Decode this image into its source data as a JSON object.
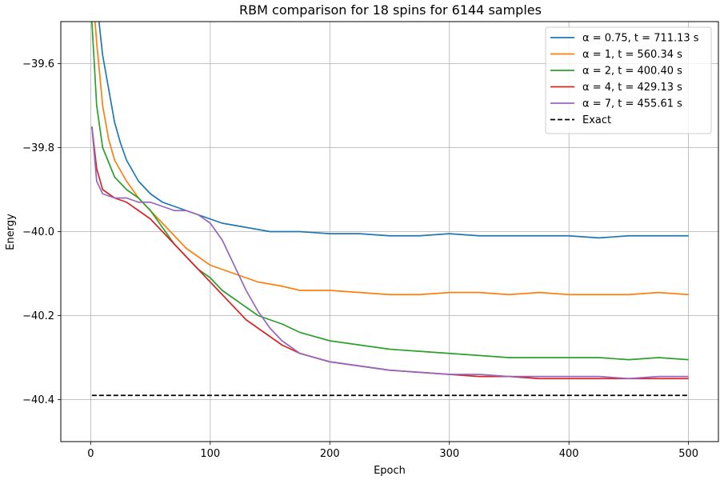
{
  "chart_data": {
    "type": "line",
    "title": "RBM comparison for 18 spins for 6144 samples",
    "xlabel": "Epoch",
    "ylabel": "Energy",
    "xlim": [
      -25,
      525
    ],
    "ylim": [
      -40.5,
      -39.5
    ],
    "xticks": [
      0,
      100,
      200,
      300,
      400,
      500
    ],
    "xtick_labels": [
      "0",
      "100",
      "200",
      "300",
      "400",
      "500"
    ],
    "yticks": [
      -40.4,
      -40.2,
      -40.0,
      -39.8,
      -39.6
    ],
    "ytick_labels": [
      "−40.4",
      "−40.2",
      "−40.0",
      "−39.8",
      "−39.6"
    ],
    "grid": true,
    "legend_position": "top-right",
    "series": [
      {
        "name": "α = 0.75, t = 711.13 s",
        "color": "#1f77b4",
        "style": "solid",
        "x": [
          1,
          5,
          10,
          15,
          20,
          25,
          30,
          40,
          50,
          60,
          70,
          80,
          90,
          100,
          110,
          120,
          130,
          140,
          150,
          175,
          200,
          225,
          250,
          275,
          300,
          325,
          350,
          375,
          400,
          425,
          450,
          475,
          500
        ],
        "y": [
          -39.3,
          -39.45,
          -39.58,
          -39.66,
          -39.74,
          -39.79,
          -39.83,
          -39.88,
          -39.91,
          -39.93,
          -39.94,
          -39.95,
          -39.96,
          -39.97,
          -39.98,
          -39.985,
          -39.99,
          -39.995,
          -40.0,
          -40.0,
          -40.005,
          -40.005,
          -40.01,
          -40.01,
          -40.005,
          -40.01,
          -40.01,
          -40.01,
          -40.01,
          -40.015,
          -40.01,
          -40.01,
          -40.01
        ]
      },
      {
        "name": "α = 1, t = 560.34 s",
        "color": "#ff7f0e",
        "style": "solid",
        "x": [
          1,
          5,
          10,
          15,
          20,
          30,
          40,
          50,
          60,
          70,
          80,
          90,
          100,
          110,
          120,
          130,
          140,
          150,
          160,
          175,
          200,
          225,
          250,
          275,
          300,
          325,
          350,
          375,
          400,
          425,
          450,
          475,
          500
        ],
        "y": [
          -39.4,
          -39.55,
          -39.7,
          -39.78,
          -39.83,
          -39.88,
          -39.92,
          -39.95,
          -39.98,
          -40.01,
          -40.04,
          -40.06,
          -40.08,
          -40.09,
          -40.1,
          -40.11,
          -40.12,
          -40.125,
          -40.13,
          -40.14,
          -40.14,
          -40.145,
          -40.15,
          -40.15,
          -40.145,
          -40.145,
          -40.15,
          -40.145,
          -40.15,
          -40.15,
          -40.15,
          -40.145,
          -40.15
        ]
      },
      {
        "name": "α = 2, t = 400.40 s",
        "color": "#2ca02c",
        "style": "solid",
        "x": [
          1,
          5,
          10,
          20,
          30,
          40,
          50,
          60,
          70,
          80,
          90,
          100,
          110,
          120,
          130,
          140,
          150,
          160,
          175,
          200,
          225,
          250,
          275,
          300,
          325,
          350,
          375,
          400,
          425,
          450,
          475,
          500
        ],
        "y": [
          -39.5,
          -39.7,
          -39.8,
          -39.87,
          -39.9,
          -39.92,
          -39.95,
          -39.99,
          -40.03,
          -40.06,
          -40.09,
          -40.11,
          -40.14,
          -40.16,
          -40.18,
          -40.2,
          -40.21,
          -40.22,
          -40.24,
          -40.26,
          -40.27,
          -40.28,
          -40.285,
          -40.29,
          -40.295,
          -40.3,
          -40.3,
          -40.3,
          -40.3,
          -40.305,
          -40.3,
          -40.305
        ]
      },
      {
        "name": "α = 4, t = 429.13 s",
        "color": "#d62728",
        "style": "solid",
        "x": [
          1,
          5,
          10,
          20,
          30,
          40,
          50,
          60,
          70,
          80,
          90,
          100,
          110,
          120,
          130,
          140,
          150,
          160,
          175,
          200,
          225,
          250,
          275,
          300,
          325,
          350,
          375,
          400,
          425,
          450,
          475,
          500
        ],
        "y": [
          -39.75,
          -39.85,
          -39.9,
          -39.92,
          -39.93,
          -39.95,
          -39.97,
          -40.0,
          -40.03,
          -40.06,
          -40.09,
          -40.12,
          -40.15,
          -40.18,
          -40.21,
          -40.23,
          -40.25,
          -40.27,
          -40.29,
          -40.31,
          -40.32,
          -40.33,
          -40.335,
          -40.34,
          -40.345,
          -40.345,
          -40.35,
          -40.35,
          -40.35,
          -40.35,
          -40.35,
          -40.35
        ]
      },
      {
        "name": "α = 7, t = 455.61 s",
        "color": "#9467bd",
        "style": "solid",
        "x": [
          1,
          5,
          10,
          20,
          30,
          40,
          50,
          60,
          70,
          80,
          90,
          100,
          110,
          120,
          130,
          140,
          150,
          160,
          175,
          200,
          225,
          250,
          275,
          300,
          325,
          350,
          375,
          400,
          425,
          450,
          475,
          500
        ],
        "y": [
          -39.75,
          -39.88,
          -39.91,
          -39.92,
          -39.92,
          -39.93,
          -39.93,
          -39.94,
          -39.95,
          -39.95,
          -39.96,
          -39.98,
          -40.02,
          -40.08,
          -40.14,
          -40.19,
          -40.23,
          -40.26,
          -40.29,
          -40.31,
          -40.32,
          -40.33,
          -40.335,
          -40.34,
          -40.34,
          -40.345,
          -40.345,
          -40.345,
          -40.345,
          -40.35,
          -40.345,
          -40.345
        ]
      },
      {
        "name": "Exact",
        "color": "#000000",
        "style": "dashed",
        "x": [
          1,
          500
        ],
        "y": [
          -40.39,
          -40.39
        ]
      }
    ]
  }
}
